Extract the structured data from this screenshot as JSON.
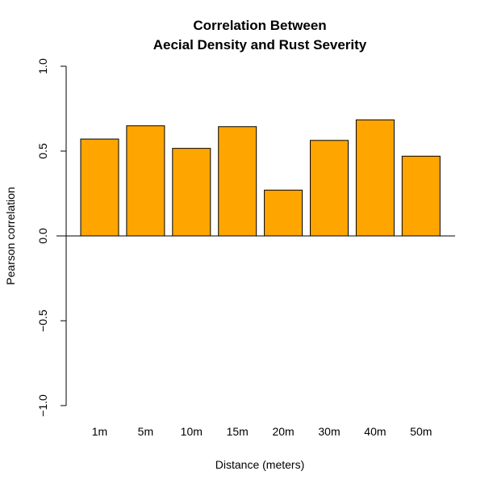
{
  "chart_data": {
    "type": "bar",
    "title": [
      "Correlation Between",
      "Aecial Density and Rust Severity"
    ],
    "xlabel": "Distance (meters)",
    "ylabel": "Pearson correlation",
    "categories": [
      "1m",
      "5m",
      "10m",
      "15m",
      "20m",
      "30m",
      "40m",
      "50m"
    ],
    "values": [
      0.571,
      0.649,
      0.516,
      0.644,
      0.27,
      0.563,
      0.684,
      0.47
    ],
    "ylim": [
      -1.0,
      1.0
    ],
    "yticks": [
      -1.0,
      -0.5,
      0.0,
      0.5,
      1.0
    ],
    "ytick_labels": [
      "-1.0",
      "-0.5",
      "0.0",
      "0.5",
      "1.0"
    ],
    "bar_color": "#FFA500",
    "bar_border": "#000000",
    "grid": false,
    "legend": "none"
  }
}
